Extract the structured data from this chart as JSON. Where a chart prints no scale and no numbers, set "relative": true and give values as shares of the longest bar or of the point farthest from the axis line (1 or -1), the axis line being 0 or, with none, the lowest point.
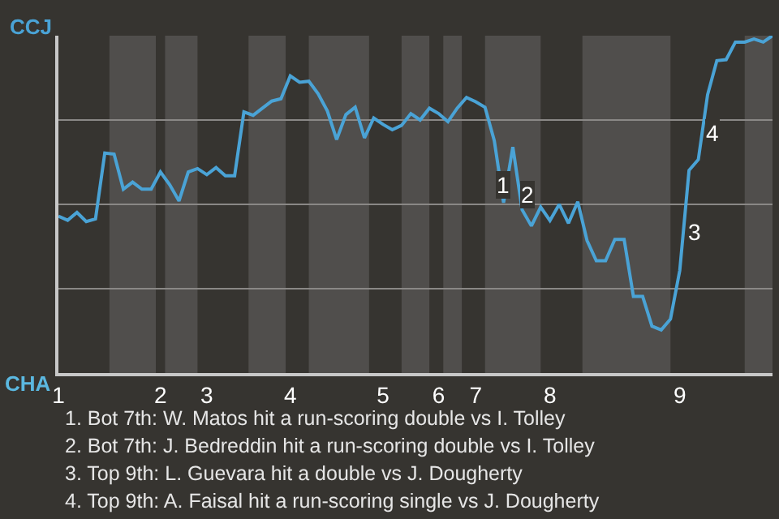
{
  "chart_data": {
    "type": "line",
    "relative": true,
    "categories": [
      "1",
      null,
      null,
      null,
      null,
      null,
      null,
      null,
      null,
      null,
      null,
      "2",
      null,
      null,
      null,
      null,
      "3",
      null,
      null,
      null,
      null,
      null,
      null,
      null,
      null,
      "4",
      null,
      null,
      null,
      null,
      null,
      null,
      null,
      null,
      null,
      "5",
      null,
      null,
      null,
      null,
      null,
      "6",
      null,
      null,
      null,
      "7",
      null,
      null,
      null,
      null,
      null,
      null,
      null,
      "8",
      null,
      null,
      null,
      null,
      null,
      null,
      null,
      null,
      null,
      null,
      null,
      null,
      null,
      "9",
      null,
      null,
      null,
      null,
      null,
      null,
      null,
      null,
      null,
      null
    ],
    "grid": "y",
    "marker": "none",
    "line_style": "solid",
    "series": [
      {
        "color": "#4aa3d6",
        "values": [
          0.465,
          0.453,
          0.476,
          0.449,
          0.457,
          0.652,
          0.649,
          0.545,
          0.566,
          0.545,
          0.545,
          0.596,
          0.558,
          0.51,
          0.596,
          0.606,
          0.588,
          0.609,
          0.585,
          0.585,
          0.774,
          0.764,
          0.785,
          0.806,
          0.813,
          0.881,
          0.862,
          0.865,
          0.828,
          0.777,
          0.692,
          0.766,
          0.788,
          0.697,
          0.756,
          0.737,
          0.721,
          0.734,
          0.769,
          0.75,
          0.785,
          0.769,
          0.745,
          0.785,
          0.817,
          0.804,
          0.788,
          0.689,
          0.505,
          0.67,
          0.484,
          0.436,
          0.492,
          0.452,
          0.5,
          0.444,
          0.508,
          0.393,
          0.333,
          0.333,
          0.396,
          0.396,
          0.227,
          0.227,
          0.139,
          0.128,
          0.16,
          0.304,
          0.601,
          0.633,
          0.825,
          0.926,
          0.929,
          0.981,
          0.981,
          0.99,
          0.981,
          1.0
        ]
      }
    ],
    "annotations": [
      "CCJ",
      "CHA",
      {
        "text": "1",
        "y": 0.56
      },
      {
        "text": "2",
        "y": 0.53
      },
      {
        "text": "3",
        "y": 0.42
      },
      {
        "text": "4",
        "y": 0.71
      },
      "1. Bot 7th: W. Matos hit a run-scoring double vs I. Tolley",
      "2. Bot 7th: J. Bedreddin hit a run-scoring double vs I. Tolley",
      "3. Top 9th: L. Guevara hit a double vs J. Dougherty",
      "4. Top 9th: A. Faisal hit a run-scoring single vs J. Dougherty"
    ]
  }
}
